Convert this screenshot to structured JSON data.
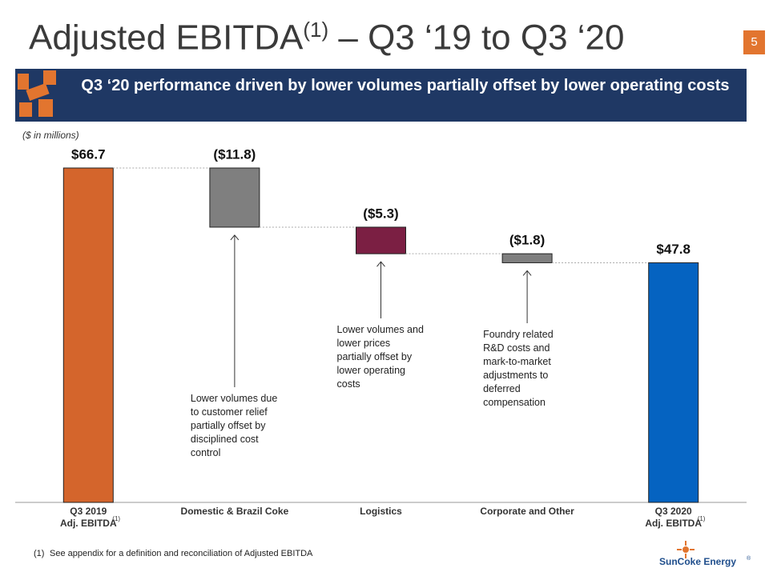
{
  "header": {
    "title": "Adjusted EBITDA",
    "title_sup": "(1)",
    "title_rest": " – Q3 ‘19 to Q3 ‘20",
    "page_number": "5",
    "banner": "Q3 ‘20 performance driven by lower volumes partially offset by lower operating costs"
  },
  "chart_data": {
    "type": "waterfall",
    "subtitle": "($ in millions)",
    "categories": [
      "Q3 2019\nAdj. EBITDA",
      "Domestic & Brazil Coke",
      "Logistics",
      "Corporate and Other",
      "Q3 2020\nAdj. EBITDA"
    ],
    "category_notes": [
      "(1)",
      null,
      null,
      null,
      "(1)"
    ],
    "measure": [
      "absolute",
      "relative",
      "relative",
      "relative",
      "absolute"
    ],
    "values": [
      66.7,
      -11.8,
      -5.3,
      -1.8,
      47.8
    ],
    "value_labels": [
      "$66.7",
      "($11.8)",
      "($5.3)",
      "($1.8)",
      "$47.8"
    ],
    "colors": [
      "#d4652c",
      "#7f7f7f",
      "#7b1f43",
      "#7f7f7f",
      "#0563c1"
    ],
    "annotations": [
      null,
      "Lower volumes due to customer relief partially offset by disciplined cost control",
      "Lower volumes and lower prices partially offset by lower operating costs",
      "Foundry related R&D costs and mark-to-market adjustments to deferred compensation",
      null
    ]
  },
  "footnote_marker": "(1)",
  "footnote": "See appendix for a definition and reconciliation of Adjusted EBITDA",
  "logo": "SunCoke Energy",
  "logo_mark": "®"
}
